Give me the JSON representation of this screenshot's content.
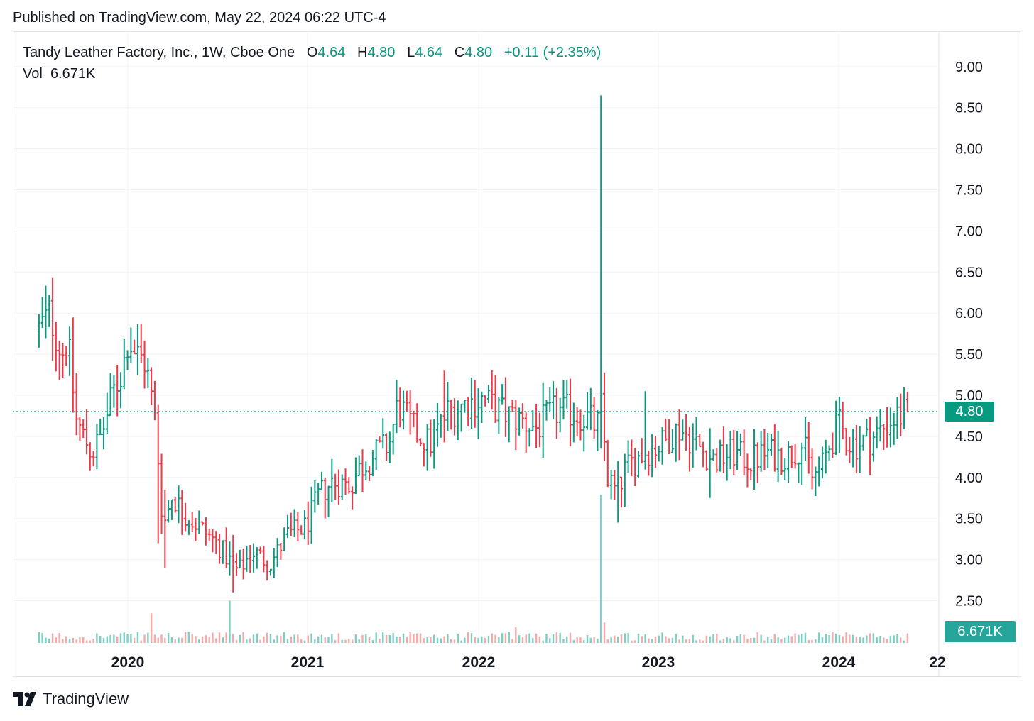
{
  "header": {
    "published": "Published on TradingView.com, May 22, 2024 06:22 UTC-4"
  },
  "legend": {
    "symbol": "Tandy Leather Factory, Inc., 1W, Cboe One",
    "o_label": "O",
    "o_value": "4.64",
    "h_label": "H",
    "h_value": "4.80",
    "l_label": "L",
    "l_value": "4.64",
    "c_label": "C",
    "c_value": "4.80",
    "change": "+0.11 (+2.35%)",
    "vol_label": "Vol",
    "vol_value": "6.671K"
  },
  "price_tag": "4.80",
  "volume_tag": "6.671K",
  "footer": {
    "brand": "TradingView"
  },
  "colors": {
    "up": "#089981",
    "down": "#f23645",
    "vol_up": "#7ccfc4",
    "vol_down": "#f7a9a7",
    "grid": "#f0f3fa"
  },
  "chart_data": {
    "type": "ohlc",
    "yaxis": {
      "ticks": [
        "9.00",
        "8.50",
        "8.00",
        "7.50",
        "7.00",
        "6.50",
        "6.00",
        "5.50",
        "5.00",
        "4.50",
        "4.00",
        "3.50",
        "3.00",
        "2.50"
      ],
      "ylim": [
        2.15,
        9.3
      ]
    },
    "xaxis": {
      "ticks": [
        "2020",
        "2021",
        "2022",
        "2023",
        "2024",
        "22"
      ]
    },
    "last_close": 4.8,
    "anchors": [
      [
        2019.5,
        5.8
      ],
      [
        2019.56,
        6.0
      ],
      [
        2019.63,
        5.5
      ],
      [
        2019.66,
        5.7
      ],
      [
        2019.71,
        4.7
      ],
      [
        2019.75,
        4.5
      ],
      [
        2019.8,
        4.3
      ],
      [
        2019.85,
        4.5
      ],
      [
        2019.92,
        5.05
      ],
      [
        2019.97,
        5.3
      ],
      [
        2020.0,
        5.7
      ],
      [
        2020.05,
        5.5
      ],
      [
        2020.1,
        5.4
      ],
      [
        2020.13,
        5.0
      ],
      [
        2020.16,
        4.6
      ],
      [
        2020.18,
        3.9
      ],
      [
        2020.2,
        3.4
      ],
      [
        2020.25,
        3.8
      ],
      [
        2020.3,
        3.6
      ],
      [
        2020.4,
        3.4
      ],
      [
        2020.5,
        3.2
      ],
      [
        2020.55,
        3.05
      ],
      [
        2020.62,
        2.85
      ],
      [
        2020.7,
        3.1
      ],
      [
        2020.8,
        2.95
      ],
      [
        2020.9,
        3.3
      ],
      [
        2021.0,
        3.4
      ],
      [
        2021.08,
        3.8
      ],
      [
        2021.15,
        3.95
      ],
      [
        2021.25,
        3.9
      ],
      [
        2021.3,
        4.1
      ],
      [
        2021.4,
        4.3
      ],
      [
        2021.47,
        4.4
      ],
      [
        2021.52,
        4.9
      ],
      [
        2021.6,
        4.6
      ],
      [
        2021.7,
        4.4
      ],
      [
        2021.8,
        4.8
      ],
      [
        2021.9,
        4.9
      ],
      [
        2022.0,
        4.95
      ],
      [
        2022.1,
        4.8
      ],
      [
        2022.2,
        4.7
      ],
      [
        2022.3,
        4.6
      ],
      [
        2022.4,
        4.8
      ],
      [
        2022.5,
        4.8
      ],
      [
        2022.6,
        4.7
      ],
      [
        2022.64,
        4.6
      ],
      [
        2022.66,
        4.9
      ],
      [
        2022.7,
        4.0
      ],
      [
        2022.75,
        3.8
      ],
      [
        2022.8,
        4.1
      ],
      [
        2022.9,
        4.3
      ],
      [
        2023.0,
        4.4
      ],
      [
        2023.1,
        4.6
      ],
      [
        2023.2,
        4.4
      ],
      [
        2023.3,
        4.2
      ],
      [
        2023.4,
        4.3
      ],
      [
        2023.5,
        4.2
      ],
      [
        2023.6,
        4.3
      ],
      [
        2023.7,
        4.25
      ],
      [
        2023.8,
        4.4
      ],
      [
        2023.85,
        4.0
      ],
      [
        2023.9,
        4.1
      ],
      [
        2023.95,
        4.4
      ],
      [
        2024.0,
        4.65
      ],
      [
        2024.05,
        4.45
      ],
      [
        2024.1,
        4.4
      ],
      [
        2024.2,
        4.5
      ],
      [
        2024.3,
        4.7
      ],
      [
        2024.39,
        4.8
      ]
    ],
    "spikes": [
      {
        "x": 2022.66,
        "high": 8.65,
        "low": 4.35,
        "volume": 9.5
      },
      {
        "x": 2020.18,
        "high": 4.5,
        "low": 3.2
      },
      {
        "x": 2020.2,
        "high": 3.85,
        "low": 2.9
      },
      {
        "x": 2020.6,
        "high": 3.3,
        "low": 2.6
      },
      {
        "x": 2019.53,
        "high": 6.15,
        "low": 5.7
      },
      {
        "x": 2021.79,
        "high": 5.3,
        "low": 5.3
      },
      {
        "x": 2022.75,
        "high": 4.2,
        "low": 3.45
      },
      {
        "x": 2023.27,
        "high": 4.6,
        "low": 3.75
      },
      {
        "x": 2023.85,
        "high": 4.35,
        "low": 3.9
      },
      {
        "x": 2024.0,
        "high": 4.98,
        "low": 4.3
      },
      {
        "x": 2024.34,
        "high": 5.02,
        "low": 4.5
      },
      {
        "x": 2022.91,
        "high": 5.05,
        "low": 4.4
      }
    ],
    "volume_spikes": [
      {
        "x": 2020.58,
        "volume": 2.7
      },
      {
        "x": 2020.14,
        "volume": 1.9
      },
      {
        "x": 2022.18,
        "volume": 1.0
      },
      {
        "x": 2022.68,
        "volume": 1.3
      }
    ]
  }
}
